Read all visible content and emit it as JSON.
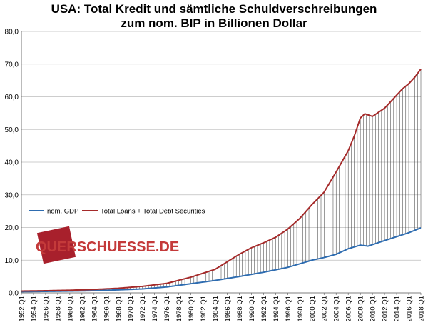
{
  "chart_data": {
    "type": "line",
    "title": "USA: Total Kredit und sämtliche Schuldverschreibungen",
    "subtitle": "zum nom. BIP in Billionen Dollar",
    "xlabel": "",
    "ylabel": "",
    "ylim": [
      0,
      80
    ],
    "yticks": [
      "0,0",
      "10,0",
      "20,0",
      "30,0",
      "40,0",
      "50,0",
      "60,0",
      "70,0",
      "80,0"
    ],
    "x_start": "1952 Q1",
    "x_end": "2018 Q1",
    "grid": "horizontal",
    "xtick_labels": [
      "1952 Q1",
      "1954 Q1",
      "1956 Q1",
      "1958 Q1",
      "1960 Q1",
      "1962 Q1",
      "1964 Q1",
      "1966 Q1",
      "1968 Q1",
      "1970 Q1",
      "1972 Q1",
      "1974 Q1",
      "1976 Q1",
      "1978 Q1",
      "1980 Q1",
      "1982 Q1",
      "1984 Q1",
      "1986 Q1",
      "1988 Q1",
      "1990 Q1",
      "1992 Q1",
      "1994 Q1",
      "1996 Q1",
      "1998 Q1",
      "2000 Q1",
      "2002 Q1",
      "2004 Q1",
      "2006 Q1",
      "2008 Q1",
      "2010 Q1",
      "2012 Q1",
      "2014 Q1",
      "2016 Q1",
      "2018 Q1"
    ],
    "legend_position": "left-middle",
    "series": [
      {
        "name": "nom. GDP",
        "color": "#2e6cb0",
        "anchors": [
          [
            "1952 Q1",
            0.36
          ],
          [
            "1956 Q1",
            0.44
          ],
          [
            "1960 Q1",
            0.54
          ],
          [
            "1964 Q1",
            0.66
          ],
          [
            "1968 Q1",
            0.91
          ],
          [
            "1972 Q1",
            1.2
          ],
          [
            "1976 Q1",
            1.8
          ],
          [
            "1980 Q1",
            2.8
          ],
          [
            "1984 Q1",
            3.8
          ],
          [
            "1988 Q1",
            5.0
          ],
          [
            "1992 Q1",
            6.3
          ],
          [
            "1996 Q1",
            7.8
          ],
          [
            "2000 Q1",
            10.0
          ],
          [
            "2002 Q1",
            10.8
          ],
          [
            "2004 Q1",
            11.8
          ],
          [
            "2006 Q1",
            13.5
          ],
          [
            "2008 Q1",
            14.6
          ],
          [
            "2009 Q2",
            14.3
          ],
          [
            "2012 Q1",
            16.0
          ],
          [
            "2014 Q1",
            17.2
          ],
          [
            "2016 Q1",
            18.4
          ],
          [
            "2018 Q1",
            19.9
          ]
        ]
      },
      {
        "name": "Total Loans + Total Debt Securities",
        "color": "#a52a2a",
        "anchors": [
          [
            "1952 Q1",
            0.55
          ],
          [
            "1956 Q1",
            0.65
          ],
          [
            "1960 Q1",
            0.8
          ],
          [
            "1964 Q1",
            1.05
          ],
          [
            "1968 Q1",
            1.4
          ],
          [
            "1972 Q1",
            2.0
          ],
          [
            "1976 Q1",
            2.9
          ],
          [
            "1980 Q1",
            4.8
          ],
          [
            "1984 Q1",
            7.2
          ],
          [
            "1986 Q1",
            9.5
          ],
          [
            "1988 Q1",
            11.8
          ],
          [
            "1990 Q1",
            13.8
          ],
          [
            "1992 Q1",
            15.3
          ],
          [
            "1994 Q1",
            17.0
          ],
          [
            "1996 Q1",
            19.5
          ],
          [
            "1998 Q1",
            22.8
          ],
          [
            "2000 Q1",
            27.0
          ],
          [
            "2002 Q1",
            30.8
          ],
          [
            "2004 Q1",
            37.0
          ],
          [
            "2006 Q1",
            43.5
          ],
          [
            "2007 Q1",
            48.0
          ],
          [
            "2008 Q1",
            53.5
          ],
          [
            "2008 Q4",
            54.8
          ],
          [
            "2010 Q1",
            54.0
          ],
          [
            "2012 Q1",
            56.5
          ],
          [
            "2013 Q1",
            58.5
          ],
          [
            "2014 Q1",
            60.5
          ],
          [
            "2015 Q1",
            62.5
          ],
          [
            "2016 Q1",
            64.0
          ],
          [
            "2017 Q1",
            66.0
          ],
          [
            "2018 Q1",
            68.5
          ]
        ]
      }
    ],
    "watermark": "QUERSCHUESSE.DE"
  }
}
